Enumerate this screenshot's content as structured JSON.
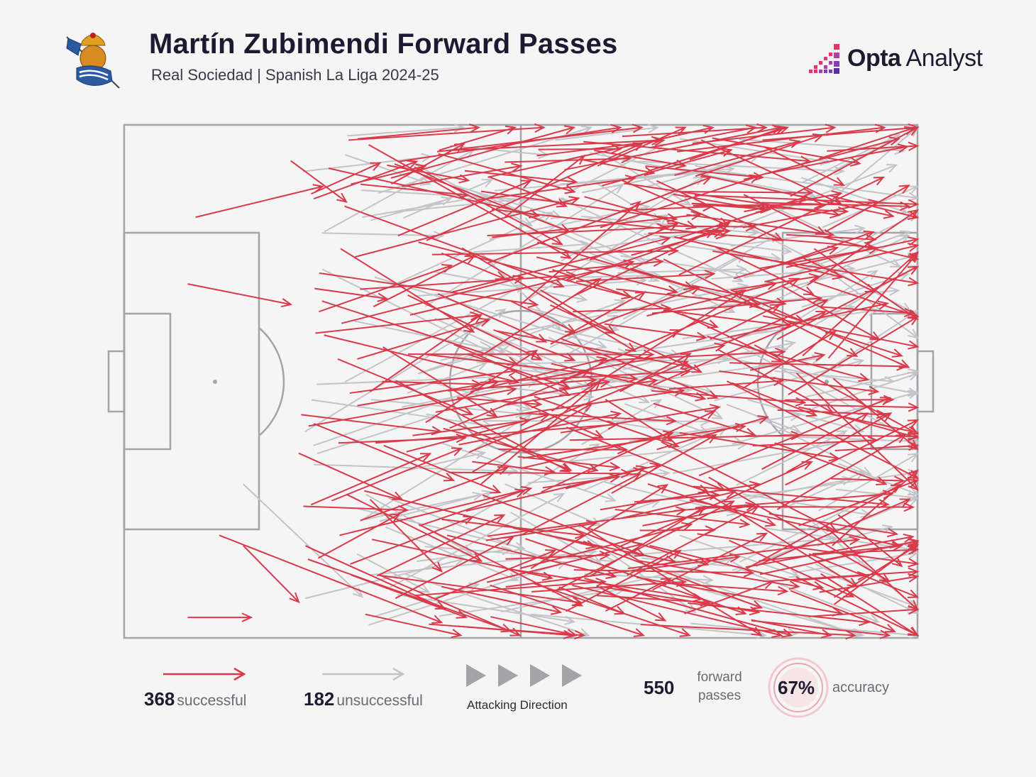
{
  "header": {
    "title": "Martín Zubimendi Forward Passes",
    "subtitle": "Real Sociedad | Spanish La Liga 2024-25",
    "crest_icon": "real-sociedad-crest-icon"
  },
  "brand": {
    "bold": "Opta",
    "light": " Analyst",
    "logo_icon": "opta-bars-icon"
  },
  "colors": {
    "successful": "#d93a4a",
    "unsuccessful": "#c4c4c8",
    "pitch_lines": "#a3a3a8",
    "background": "#f5f5f6"
  },
  "legend": {
    "successful_count": "368",
    "successful_label": "successful",
    "unsuccessful_count": "182",
    "unsuccessful_label": "unsuccessful",
    "direction_label": "Attacking Direction",
    "forward_count": "550",
    "forward_label_1": "forward",
    "forward_label_2": "passes",
    "accuracy_value": "67%",
    "accuracy_label": "accuracy"
  },
  "chart_data": {
    "type": "pass-map",
    "attacking_direction": "left-to-right",
    "pitch_length": 100,
    "pitch_width": 100,
    "successful_total": 368,
    "unsuccessful_total": 182,
    "total_forward_passes": 550,
    "accuracy_percent": 67,
    "sample_successful": [
      [
        9,
        18,
        25,
        12
      ],
      [
        8,
        31,
        21,
        35
      ],
      [
        21,
        7,
        28,
        15
      ],
      [
        8,
        96,
        16,
        96
      ],
      [
        15,
        82,
        22,
        93
      ],
      [
        12,
        80,
        40,
        97
      ],
      [
        31,
        73,
        40,
        87
      ],
      [
        22,
        64,
        35,
        73
      ],
      [
        31,
        52,
        45,
        37
      ],
      [
        27,
        62,
        43,
        61
      ],
      [
        40,
        25,
        48,
        30
      ],
      [
        35,
        12,
        50,
        8
      ],
      [
        45,
        45,
        60,
        30
      ],
      [
        55,
        50,
        70,
        40
      ],
      [
        60,
        20,
        80,
        10
      ],
      [
        70,
        40,
        85,
        30
      ],
      [
        80,
        28,
        95,
        24
      ],
      [
        72,
        10,
        88,
        2
      ],
      [
        50,
        80,
        65,
        68
      ],
      [
        40,
        90,
        55,
        95
      ],
      [
        60,
        75,
        80,
        70
      ],
      [
        70,
        60,
        90,
        65
      ],
      [
        65,
        85,
        85,
        90
      ],
      [
        80,
        85,
        98,
        82
      ],
      [
        85,
        55,
        100,
        60
      ],
      [
        78,
        20,
        95,
        15
      ],
      [
        50,
        35,
        65,
        15
      ],
      [
        55,
        60,
        75,
        55
      ],
      [
        45,
        70,
        60,
        50
      ],
      [
        60,
        90,
        80,
        95
      ],
      [
        28,
        72,
        45,
        85
      ],
      [
        52,
        6,
        68,
        3
      ],
      [
        62,
        32,
        80,
        35
      ],
      [
        75,
        48,
        95,
        52
      ],
      [
        88,
        40,
        98,
        45
      ],
      [
        66,
        70,
        82,
        78
      ],
      [
        38,
        58,
        52,
        44
      ],
      [
        48,
        18,
        58,
        6
      ],
      [
        58,
        14,
        72,
        20
      ],
      [
        70,
        22,
        86,
        14
      ],
      [
        82,
        62,
        96,
        70
      ],
      [
        90,
        76,
        98,
        86
      ]
    ],
    "sample_unsuccessful": [
      [
        30,
        18,
        45,
        14
      ],
      [
        35,
        55,
        52,
        50
      ],
      [
        48,
        70,
        60,
        78
      ],
      [
        55,
        40,
        70,
        45
      ],
      [
        62,
        58,
        78,
        62
      ],
      [
        70,
        80,
        85,
        88
      ],
      [
        74,
        30,
        92,
        28
      ],
      [
        82,
        48,
        97,
        50
      ],
      [
        88,
        20,
        100,
        12
      ],
      [
        90,
        66,
        100,
        72
      ],
      [
        15,
        70,
        30,
        92
      ],
      [
        45,
        25,
        55,
        40
      ],
      [
        58,
        80,
        72,
        95
      ],
      [
        66,
        12,
        80,
        6
      ],
      [
        78,
        72,
        94,
        76
      ],
      [
        60,
        46,
        74,
        52
      ],
      [
        42,
        12,
        55,
        18
      ],
      [
        86,
        86,
        100,
        94
      ]
    ]
  }
}
